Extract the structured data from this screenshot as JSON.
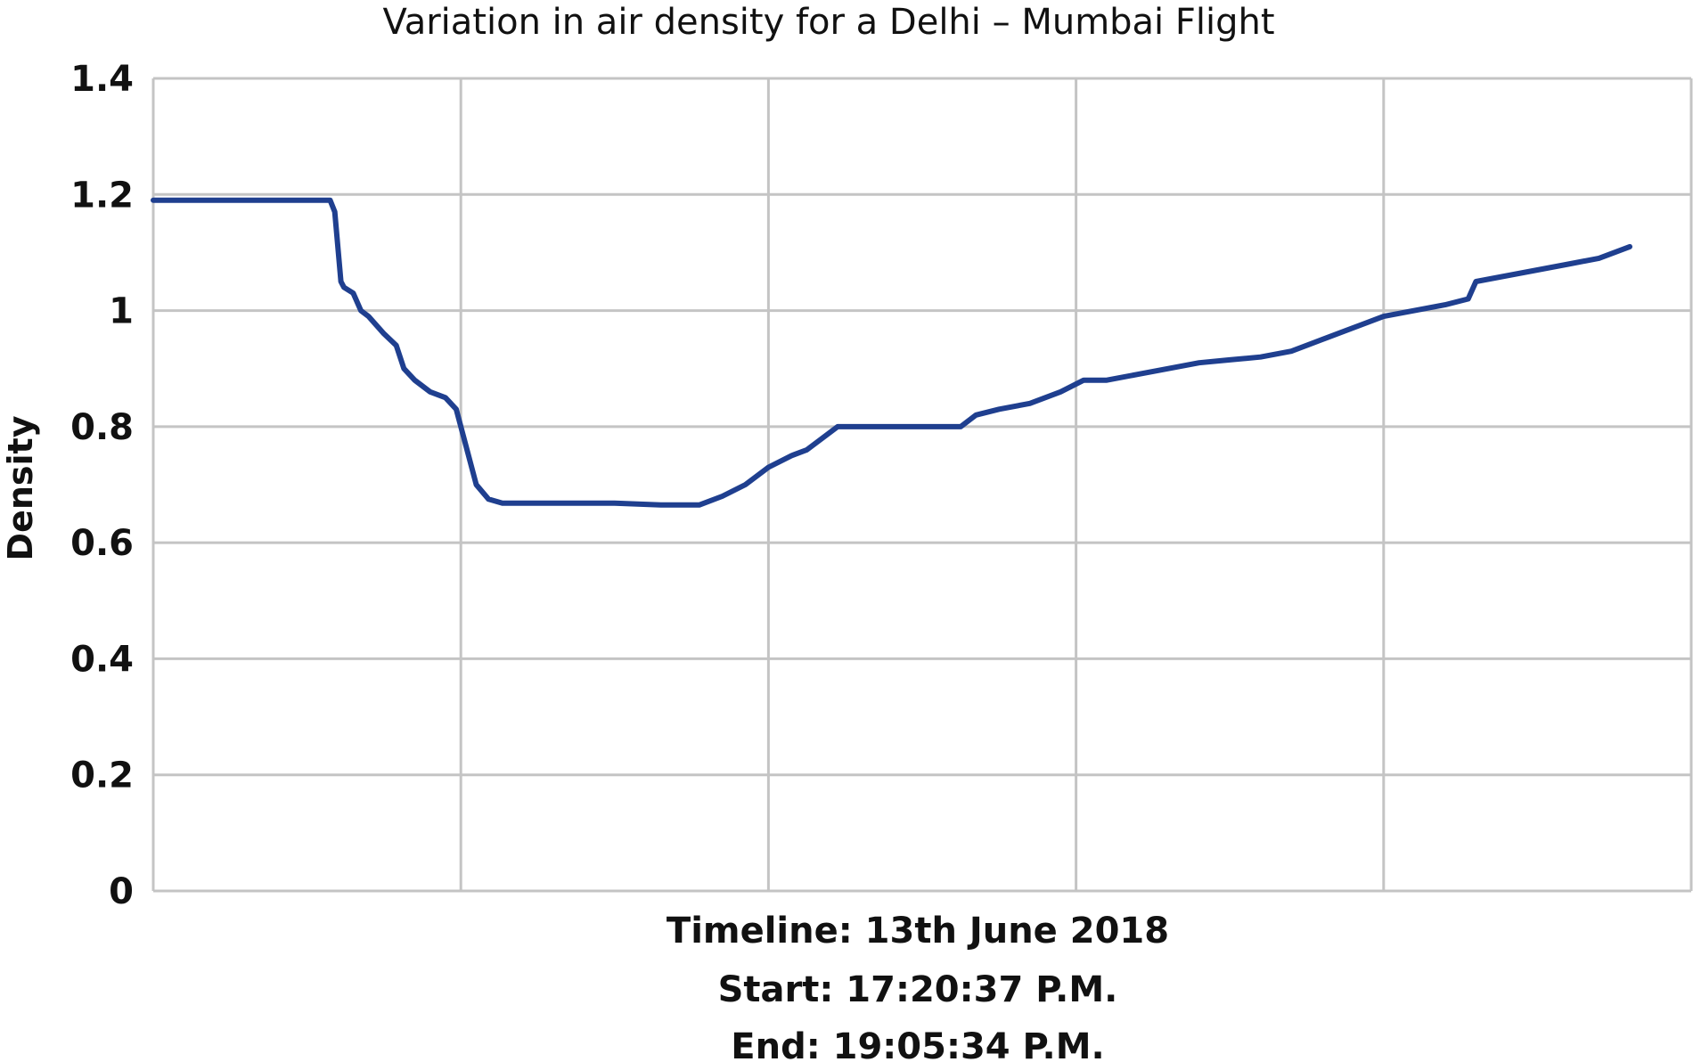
{
  "chart_data": {
    "type": "line",
    "title": "Variation in air density for a Delhi – Mumbai Flight",
    "xlabel_lines": [
      "Timeline: 13th June 2018",
      "Start: 17:20:37 P.M.",
      "End: 19:05:34 P.M."
    ],
    "ylabel": "Density",
    "ylim": [
      0,
      1.4
    ],
    "yticks": [
      "0",
      "0.2",
      "0.4",
      "0.6",
      "0.8",
      "1",
      "1.2",
      "1.4"
    ],
    "xlim": [
      0,
      100
    ],
    "x_grid_divisions": 5,
    "grid": true,
    "series_color": "#1f3f8f",
    "series": [
      {
        "x": [
          0,
          11.5,
          11.8,
          12.2,
          12.4,
          13.0,
          13.5,
          14.0,
          15.0,
          15.8,
          16.3,
          17.0,
          18.0,
          19.0,
          19.7,
          20.3,
          21.0,
          21.8,
          22.7,
          23.8,
          25.0,
          27.0,
          30.0,
          33.0,
          35.5,
          37.0,
          38.5,
          40.0,
          41.5,
          42.5,
          43.5,
          44.5,
          46.0,
          48.0,
          50.0,
          52.5,
          53.5,
          55.0,
          57.0,
          59.0,
          60.5,
          62.0,
          64.0,
          66.0,
          68.0,
          70.0,
          72.0,
          74.0,
          76.0,
          78.0,
          80.0,
          82.0,
          84.0,
          85.5,
          86.0,
          88.0,
          90.0,
          92.0,
          94.0,
          96.0
        ],
        "y": [
          1.19,
          1.19,
          1.17,
          1.05,
          1.04,
          1.03,
          1.0,
          0.99,
          0.96,
          0.94,
          0.9,
          0.88,
          0.86,
          0.85,
          0.83,
          0.77,
          0.7,
          0.675,
          0.668,
          0.668,
          0.668,
          0.668,
          0.668,
          0.665,
          0.665,
          0.68,
          0.7,
          0.73,
          0.75,
          0.76,
          0.78,
          0.8,
          0.8,
          0.8,
          0.8,
          0.8,
          0.82,
          0.83,
          0.84,
          0.86,
          0.88,
          0.88,
          0.89,
          0.9,
          0.91,
          0.915,
          0.92,
          0.93,
          0.95,
          0.97,
          0.99,
          1.0,
          1.01,
          1.02,
          1.05,
          1.06,
          1.07,
          1.08,
          1.09,
          1.11
        ]
      }
    ]
  }
}
